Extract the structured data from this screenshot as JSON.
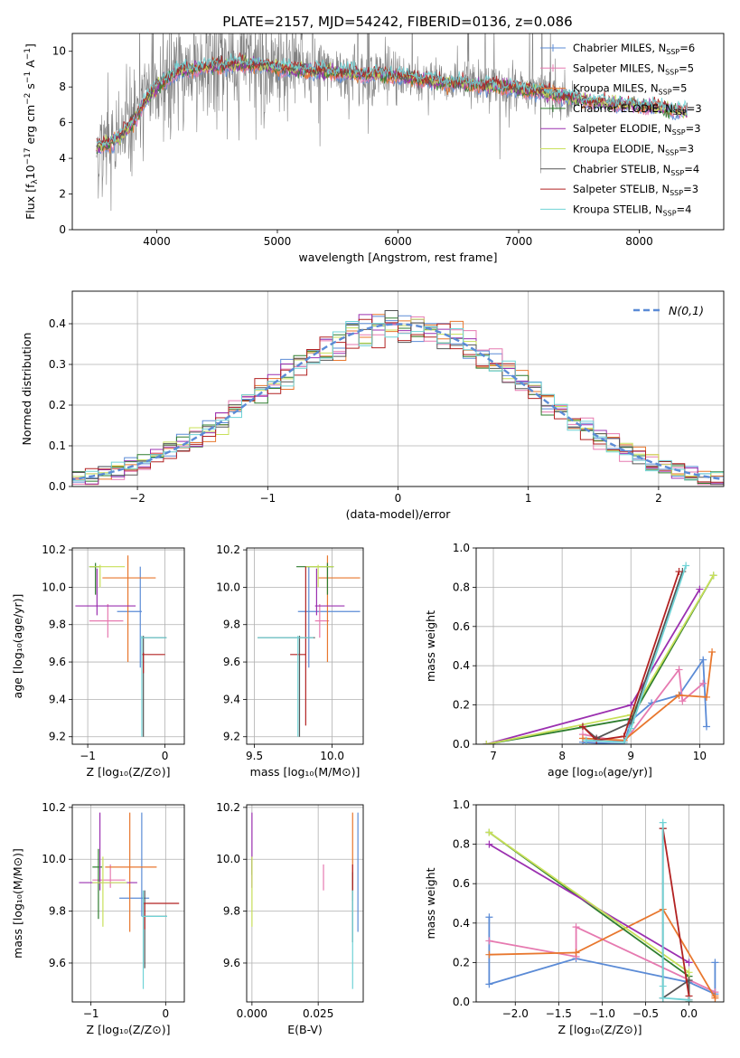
{
  "figure_title": "PLATE=2157, MJD=54242, FIBERID=0136, z=0.086",
  "colors": {
    "chabrier_miles": "#5b8bd6",
    "salpeter_miles": "#e67ab0",
    "kroupa_miles": "#e8772e",
    "chabrier_elodie": "#2e7d2e",
    "salpeter_elodie": "#9b30b0",
    "kroupa_elodie": "#c8e05a",
    "chabrier_stelib": "#555555",
    "salpeter_stelib": "#b22222",
    "kroupa_stelib": "#6fd3d6",
    "data_grey": "#808080",
    "normal_curve": "#5b8bd6"
  },
  "models": [
    {
      "key": "chabrier_miles",
      "legend": "Chabrier MILES, N",
      "nssp": "=6"
    },
    {
      "key": "salpeter_miles",
      "legend": "Salpeter MILES, N",
      "nssp": "=5"
    },
    {
      "key": "kroupa_miles",
      "legend": "Kroupa MILES, N",
      "nssp": "=5"
    },
    {
      "key": "chabrier_elodie",
      "legend": "Chabrier ELODIE, N",
      "nssp": "=3"
    },
    {
      "key": "salpeter_elodie",
      "legend": "Salpeter ELODIE, N",
      "nssp": "=3"
    },
    {
      "key": "kroupa_elodie",
      "legend": "Kroupa ELODIE, N",
      "nssp": "=3"
    },
    {
      "key": "chabrier_stelib",
      "legend": "Chabrier STELIB, N",
      "nssp": "=4"
    },
    {
      "key": "salpeter_stelib",
      "legend": "Salpeter STELIB, N",
      "nssp": "=3"
    },
    {
      "key": "kroupa_stelib",
      "legend": "Kroupa STELIB, N",
      "nssp": "=4"
    }
  ],
  "nssp_subscript": "SSP",
  "chart_data": [
    {
      "id": "spectrum",
      "type": "line",
      "xlabel": "wavelength [Angstrom, rest frame]",
      "ylabel": "Flux [f",
      "ylabel_sub": "λ",
      "ylabel_rest": "10",
      "ylabel_exp": "−17",
      "ylabel_units": " erg cm",
      "ylabel_units_exp1": "−2",
      "ylabel_units_mid": " s",
      "ylabel_units_exp2": "−1",
      "ylabel_units_end": " A",
      "ylabel_units_exp3": "−1",
      "ylabel_close": "]",
      "xlim": [
        3300,
        8700
      ],
      "ylim": [
        0,
        11
      ],
      "xticks": [
        4000,
        5000,
        6000,
        7000,
        8000
      ],
      "yticks": [
        0,
        2,
        4,
        6,
        8,
        10
      ],
      "continuum": {
        "x": [
          3500,
          3600,
          3700,
          3800,
          3900,
          4000,
          4100,
          4200,
          4300,
          4500,
          4700,
          4900,
          5100,
          5300,
          5500,
          5700,
          5900,
          6100,
          6300,
          6500,
          6700,
          6900,
          7100,
          7300,
          7500,
          7700,
          7900,
          8100,
          8300,
          8400
        ],
        "y": [
          4.6,
          4.8,
          5.2,
          6.0,
          7.2,
          8.0,
          8.6,
          8.9,
          9.0,
          9.2,
          9.3,
          9.2,
          9.0,
          8.9,
          8.8,
          8.7,
          8.7,
          8.5,
          8.3,
          8.2,
          8.1,
          8.0,
          7.8,
          7.6,
          7.3,
          7.1,
          7.0,
          6.9,
          6.7,
          6.6
        ]
      },
      "data_range": [
        3500,
        7450
      ],
      "model_range": [
        3500,
        8400
      ]
    },
    {
      "id": "residuals",
      "type": "histogram",
      "xlabel": "(data-model)/error",
      "ylabel": "Normed distribution",
      "xlim": [
        -2.5,
        2.5
      ],
      "ylim": [
        0,
        0.48
      ],
      "xticks": [
        -2,
        -1,
        0,
        1,
        2
      ],
      "yticks": [
        0.0,
        0.1,
        0.2,
        0.3,
        0.4
      ],
      "bin_width": 0.1,
      "legend": "N(0,1)"
    },
    {
      "id": "age_vs_Z",
      "type": "errorbar",
      "xlabel": "Z [log₁₀(Z/Z⊙)]",
      "ylabel": "age  [log₁₀(age/yr)]",
      "xlim": [
        -1.2,
        0.25
      ],
      "ylim": [
        9.16,
        10.21
      ],
      "xticks": [
        -1,
        0
      ],
      "yticks": [
        9.2,
        9.4,
        9.6,
        9.8,
        10.0,
        10.2
      ],
      "points": [
        {
          "model": "chabrier_miles",
          "x": -0.32,
          "xerr": [
            0.3,
            0.02
          ],
          "y": 9.87,
          "yerr": [
            0.3,
            0.24
          ]
        },
        {
          "model": "salpeter_miles",
          "x": -0.74,
          "xerr": [
            0.24,
            0.2
          ],
          "y": 9.82,
          "yerr": [
            0.09,
            0.09
          ]
        },
        {
          "model": "kroupa_miles",
          "x": -0.48,
          "xerr": [
            0.33,
            0.36
          ],
          "y": 10.05,
          "yerr": [
            0.45,
            0.12
          ]
        },
        {
          "model": "chabrier_elodie",
          "x": -0.9,
          "xerr": [
            0.08,
            0.05
          ],
          "y": 10.11,
          "yerr": [
            0.15,
            0.02
          ]
        },
        {
          "model": "salpeter_elodie",
          "x": -0.88,
          "xerr": [
            0.28,
            0.5
          ],
          "y": 9.9,
          "yerr": [
            0.05,
            0.2
          ]
        },
        {
          "model": "kroupa_elodie",
          "x": -0.84,
          "xerr": [
            0.14,
            0.32
          ],
          "y": 10.11,
          "yerr": [
            0.11,
            0.01
          ]
        },
        {
          "model": "chabrier_stelib",
          "x": -0.28,
          "xerr": [
            0.02,
            0.3
          ],
          "y": 9.73,
          "yerr": [
            0.53,
            0.01
          ]
        },
        {
          "model": "salpeter_stelib",
          "x": -0.28,
          "xerr": [
            0.02,
            0.28
          ],
          "y": 9.64,
          "yerr": [
            0.1,
            0.01
          ]
        },
        {
          "model": "kroupa_stelib",
          "x": -0.3,
          "xerr": [
            0.02,
            0.32
          ],
          "y": 9.73,
          "yerr": [
            0.53,
            0.01
          ]
        }
      ]
    },
    {
      "id": "age_vs_mass",
      "type": "errorbar",
      "xlabel": "mass [log₁₀(M/M⊙)]",
      "ylabel": "",
      "xlim": [
        9.45,
        10.2
      ],
      "ylim": [
        9.16,
        10.21
      ],
      "xticks": [
        9.5,
        10.0
      ],
      "yticks": [
        9.2,
        9.4,
        9.6,
        9.8,
        10.0,
        10.2
      ],
      "points": [
        {
          "model": "chabrier_miles",
          "x": 9.85,
          "xerr": [
            0.07,
            0.33
          ],
          "y": 9.87,
          "yerr": [
            0.3,
            0.24
          ]
        },
        {
          "model": "salpeter_miles",
          "x": 9.92,
          "xerr": [
            0.03,
            0.06
          ],
          "y": 9.82,
          "yerr": [
            0.09,
            0.09
          ]
        },
        {
          "model": "kroupa_miles",
          "x": 9.97,
          "xerr": [
            0.06,
            0.21
          ],
          "y": 10.05,
          "yerr": [
            0.45,
            0.12
          ]
        },
        {
          "model": "chabrier_elodie",
          "x": 9.97,
          "xerr": [
            0.2,
            0.04
          ],
          "y": 10.11,
          "yerr": [
            0.15,
            0.02
          ]
        },
        {
          "model": "salpeter_elodie",
          "x": 9.9,
          "xerr": [
            0.01,
            0.18
          ],
          "y": 9.9,
          "yerr": [
            0.05,
            0.2
          ]
        },
        {
          "model": "kroupa_elodie",
          "x": 9.91,
          "xerr": [
            0.08,
            0.1
          ],
          "y": 10.11,
          "yerr": [
            0.11,
            0.01
          ]
        },
        {
          "model": "chabrier_stelib",
          "x": 9.79,
          "xerr": [
            0.27,
            0.1
          ],
          "y": 9.73,
          "yerr": [
            0.53,
            0.01
          ]
        },
        {
          "model": "salpeter_stelib",
          "x": 9.83,
          "xerr": [
            0.1,
            0.0
          ],
          "y": 9.64,
          "yerr": [
            0.38,
            0.47
          ]
        },
        {
          "model": "kroupa_stelib",
          "x": 9.78,
          "xerr": [
            0.26,
            0.1
          ],
          "y": 9.73,
          "yerr": [
            0.53,
            0.01
          ]
        }
      ]
    },
    {
      "id": "weight_vs_age",
      "type": "line",
      "xlabel": "age  [log₁₀(age/yr)]",
      "ylabel": "mass weight",
      "xlim": [
        6.75,
        10.35
      ],
      "ylim": [
        0,
        1.0
      ],
      "xticks": [
        7,
        8,
        9,
        10
      ],
      "yticks": [
        0.0,
        0.2,
        0.4,
        0.6,
        0.8,
        1.0
      ],
      "series": [
        {
          "model": "chabrier_miles",
          "x": [
            8.3,
            8.9,
            9.0,
            9.3,
            9.7,
            10.05,
            10.1
          ],
          "y": [
            0.01,
            0.0,
            0.12,
            0.21,
            0.25,
            0.43,
            0.09
          ]
        },
        {
          "model": "salpeter_miles",
          "x": [
            8.3,
            8.9,
            9.7,
            9.75,
            10.05
          ],
          "y": [
            0.05,
            0.01,
            0.38,
            0.22,
            0.31
          ]
        },
        {
          "model": "kroupa_miles",
          "x": [
            8.3,
            8.9,
            9.7,
            10.1,
            10.18
          ],
          "y": [
            0.03,
            0.02,
            0.25,
            0.24,
            0.47
          ]
        },
        {
          "model": "chabrier_elodie",
          "x": [
            6.9,
            9.0,
            10.2
          ],
          "y": [
            0.0,
            0.13,
            0.86
          ]
        },
        {
          "model": "salpeter_elodie",
          "x": [
            6.9,
            9.0,
            10.0
          ],
          "y": [
            0.0,
            0.2,
            0.79
          ]
        },
        {
          "model": "kroupa_elodie",
          "x": [
            6.9,
            9.0,
            10.2
          ],
          "y": [
            0.0,
            0.15,
            0.86
          ]
        },
        {
          "model": "chabrier_stelib",
          "x": [
            8.3,
            8.5,
            9.0,
            9.75
          ],
          "y": [
            0.09,
            0.03,
            0.11,
            0.88
          ]
        },
        {
          "model": "salpeter_stelib",
          "x": [
            8.3,
            8.5,
            8.9,
            9.7
          ],
          "y": [
            0.09,
            0.02,
            0.04,
            0.88
          ]
        },
        {
          "model": "kroupa_stelib",
          "x": [
            8.35,
            8.9,
            9.0,
            9.8
          ],
          "y": [
            0.02,
            0.01,
            0.08,
            0.91
          ]
        }
      ]
    },
    {
      "id": "mass_vs_Z",
      "type": "errorbar",
      "xlabel": "Z [log₁₀(Z/Z⊙)]",
      "ylabel": "mass [log₁₀(M/M⊙)]",
      "xlim": [
        -1.25,
        0.25
      ],
      "ylim": [
        9.45,
        10.21
      ],
      "xticks": [
        -1,
        0
      ],
      "yticks": [
        9.6,
        9.8,
        10.0,
        10.2
      ],
      "points": [
        {
          "model": "chabrier_miles",
          "x": -0.32,
          "xerr": [
            0.3,
            0.1
          ],
          "y": 9.85,
          "yerr": [
            0.07,
            0.33
          ]
        },
        {
          "model": "salpeter_miles",
          "x": -0.74,
          "xerr": [
            0.24,
            0.2
          ],
          "y": 9.92,
          "yerr": [
            0.03,
            0.06
          ]
        },
        {
          "model": "kroupa_miles",
          "x": -0.48,
          "xerr": [
            0.33,
            0.36
          ],
          "y": 9.97,
          "yerr": [
            0.25,
            0.21
          ]
        },
        {
          "model": "chabrier_elodie",
          "x": -0.9,
          "xerr": [
            0.08,
            0.05
          ],
          "y": 9.97,
          "yerr": [
            0.2,
            0.07
          ]
        },
        {
          "model": "salpeter_elodie",
          "x": -0.88,
          "xerr": [
            0.28,
            0.5
          ],
          "y": 9.91,
          "yerr": [
            0.03,
            0.27
          ]
        },
        {
          "model": "kroupa_elodie",
          "x": -0.84,
          "xerr": [
            0.14,
            0.32
          ],
          "y": 9.91,
          "yerr": [
            0.17,
            0.1
          ]
        },
        {
          "model": "chabrier_stelib",
          "x": -0.28,
          "xerr": [
            0.02,
            0.3
          ],
          "y": 9.78,
          "yerr": [
            0.2,
            0.1
          ]
        },
        {
          "model": "salpeter_stelib",
          "x": -0.28,
          "xerr": [
            0.02,
            0.46
          ],
          "y": 9.83,
          "yerr": [
            0.1,
            0.0
          ]
        },
        {
          "model": "kroupa_stelib",
          "x": -0.3,
          "xerr": [
            0.02,
            0.32
          ],
          "y": 9.78,
          "yerr": [
            0.28,
            0.1
          ]
        }
      ]
    },
    {
      "id": "mass_vs_EBV",
      "type": "errorbar",
      "xlabel": "E(B-V)",
      "ylabel": "",
      "xlim": [
        -0.002,
        0.042
      ],
      "ylim": [
        9.45,
        10.21
      ],
      "xticks": [
        0.0,
        0.025
      ],
      "xtick_labels": [
        "0.000",
        "0.025"
      ],
      "yticks": [
        9.6,
        9.8,
        10.0,
        10.2
      ],
      "points": [
        {
          "model": "chabrier_miles",
          "x": 0.04,
          "y": 9.85,
          "yerr": [
            0.13,
            0.33
          ]
        },
        {
          "model": "salpeter_miles",
          "x": 0.027,
          "y": 9.92,
          "yerr": [
            0.04,
            0.06
          ]
        },
        {
          "model": "kroupa_miles",
          "x": 0.038,
          "y": 9.97,
          "yerr": [
            0.13,
            0.21
          ]
        },
        {
          "model": "chabrier_elodie",
          "x": 0.0,
          "y": 9.97,
          "yerr": [
            0.03,
            0.03
          ]
        },
        {
          "model": "salpeter_elodie",
          "x": 0.0,
          "y": 9.91,
          "yerr": [
            0.02,
            0.27
          ]
        },
        {
          "model": "kroupa_elodie",
          "x": 0.0,
          "y": 9.91,
          "yerr": [
            0.17,
            0.1
          ]
        },
        {
          "model": "chabrier_stelib",
          "x": 0.038,
          "y": 9.78,
          "yerr": [
            0.1,
            0.17
          ]
        },
        {
          "model": "salpeter_stelib",
          "x": 0.038,
          "y": 9.9,
          "yerr": [
            0.02,
            0.08
          ]
        },
        {
          "model": "kroupa_stelib",
          "x": 0.038,
          "y": 9.78,
          "yerr": [
            0.28,
            0.1
          ]
        }
      ]
    },
    {
      "id": "weight_vs_Z",
      "type": "line",
      "xlabel": "Z [log₁₀(Z/Z⊙)]",
      "ylabel": "mass weight",
      "xlim": [
        -2.45,
        0.4
      ],
      "ylim": [
        0,
        1.0
      ],
      "xticks": [
        -2.0,
        -1.5,
        -1.0,
        -0.5,
        0.0
      ],
      "xtick_labels": [
        "−2.0",
        "−1.5",
        "−1.0",
        "−0.5",
        "0.0"
      ],
      "yticks": [
        0.0,
        0.2,
        0.4,
        0.6,
        0.8,
        1.0
      ],
      "series": [
        {
          "model": "chabrier_miles",
          "x": [
            -2.3,
            -2.3,
            -1.3,
            0.0,
            0.3,
            0.3
          ],
          "y": [
            0.43,
            0.09,
            0.22,
            0.1,
            0.04,
            0.2
          ]
        },
        {
          "model": "salpeter_miles",
          "x": [
            -2.3,
            -1.3,
            -1.3,
            0.3
          ],
          "y": [
            0.31,
            0.23,
            0.38,
            0.05
          ]
        },
        {
          "model": "kroupa_miles",
          "x": [
            -2.3,
            -1.3,
            -0.3,
            0.3,
            0.3
          ],
          "y": [
            0.24,
            0.25,
            0.47,
            0.02,
            0.03
          ]
        },
        {
          "model": "chabrier_elodie",
          "x": [
            -2.3,
            0.0,
            0.0
          ],
          "y": [
            0.86,
            0.13,
            0.0
          ]
        },
        {
          "model": "salpeter_elodie",
          "x": [
            -2.3,
            0.0
          ],
          "y": [
            0.8,
            0.2
          ]
        },
        {
          "model": "kroupa_elodie",
          "x": [
            -2.3,
            0.0,
            0.0
          ],
          "y": [
            0.86,
            0.15,
            0.0
          ]
        },
        {
          "model": "chabrier_stelib",
          "x": [
            -0.3,
            -0.3,
            0.0,
            0.0
          ],
          "y": [
            0.88,
            0.02,
            0.11,
            0.0
          ]
        },
        {
          "model": "salpeter_stelib",
          "x": [
            -0.3,
            0.0,
            0.0
          ],
          "y": [
            0.88,
            0.03,
            0.01
          ]
        },
        {
          "model": "kroupa_stelib",
          "x": [
            -0.3,
            -0.3,
            -0.3,
            0.0,
            0.0
          ],
          "y": [
            0.91,
            0.08,
            0.02,
            0.01,
            0.0
          ]
        }
      ]
    }
  ]
}
